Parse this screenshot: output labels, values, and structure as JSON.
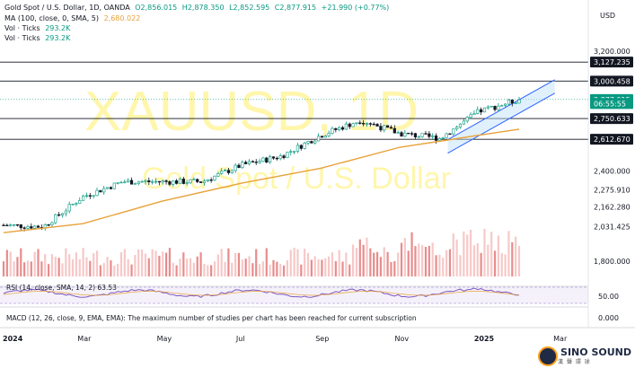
{
  "header": {
    "symbol": "Gold Spot / U.S. Dollar, 1D, OANDA",
    "open": "O2,856.015",
    "high": "H2,878.350",
    "low": "L2,852.595",
    "close": "C2,877.915",
    "change": "+21.990 (+0.77%)",
    "ma_label": "MA (100, close, 0, SMA, 5)",
    "ma_value": "2,680.022",
    "vol1_label": "Vol · Ticks",
    "vol1_value": "293.2K",
    "vol2_label": "Vol · Ticks",
    "vol2_value": "293.2K"
  },
  "currency": "USD",
  "watermark": {
    "main": "XAUUSD, 1D",
    "sub": "Gold Spot / U.S. Dollar"
  },
  "rsi_label": "RSI (14, close, SMA, 14, 2) 63.53",
  "macd_label": "MACD (12, 26, close, 9, EMA, EMA): The maximum number of studies per chart has been reached for current subscription",
  "brand": {
    "name": "SINO SOUND",
    "sub": "漢 聲 環 球"
  },
  "colors": {
    "up": "#089981",
    "down": "#131722",
    "ma": "#e8a23a",
    "channel": "#2962ff",
    "rsi": "#7e57c2",
    "watermark": "#fff176"
  },
  "chart_data": {
    "type": "candlestick",
    "title": "Gold Spot / U.S. Dollar, 1D, OANDA",
    "y_axis_price_labels": [
      "3,200.000",
      "2,400.000",
      "2,275.910",
      "2,162.280",
      "2,031.425",
      "1,800.000"
    ],
    "y_axis_highlight_labels": [
      "3,127.235",
      "3,000.458",
      "2,877.915",
      "06:55:55",
      "2,750.633",
      "2,612.670"
    ],
    "y_axis_sub_labels": [
      "50.00",
      "0.000"
    ],
    "x_axis_labels": [
      "2024",
      "Mar",
      "May",
      "Jul",
      "Sep",
      "Nov",
      "2025",
      "Mar"
    ],
    "horizontal_levels": [
      3127.235,
      3000.458,
      2750.633,
      2612.67
    ],
    "last_price": 2877.915,
    "price_series_monthly": [
      {
        "month": "Jan 2024",
        "close": 2040
      },
      {
        "month": "Feb 2024",
        "close": 2030
      },
      {
        "month": "Mar 2024",
        "close": 2230
      },
      {
        "month": "Apr 2024",
        "close": 2330
      },
      {
        "month": "May 2024",
        "close": 2330
      },
      {
        "month": "Jun 2024",
        "close": 2330
      },
      {
        "month": "Jul 2024",
        "close": 2440
      },
      {
        "month": "Aug 2024",
        "close": 2500
      },
      {
        "month": "Sep 2024",
        "close": 2640
      },
      {
        "month": "Oct 2024",
        "close": 2740
      },
      {
        "month": "Nov 2024",
        "close": 2650
      },
      {
        "month": "Dec 2024",
        "close": 2620
      },
      {
        "month": "Jan 2025",
        "close": 2800
      },
      {
        "month": "Feb 2025",
        "close": 2878
      }
    ],
    "ma100_monthly": [
      {
        "month": "Jan 2024",
        "value": 1990
      },
      {
        "month": "Mar 2024",
        "value": 2050
      },
      {
        "month": "May 2024",
        "value": 2200
      },
      {
        "month": "Jul 2024",
        "value": 2320
      },
      {
        "month": "Sep 2024",
        "value": 2420
      },
      {
        "month": "Nov 2024",
        "value": 2560
      },
      {
        "month": "Jan 2025",
        "value": 2640
      },
      {
        "month": "Feb 2025",
        "value": 2680
      }
    ],
    "rsi_value": 63.53
  }
}
